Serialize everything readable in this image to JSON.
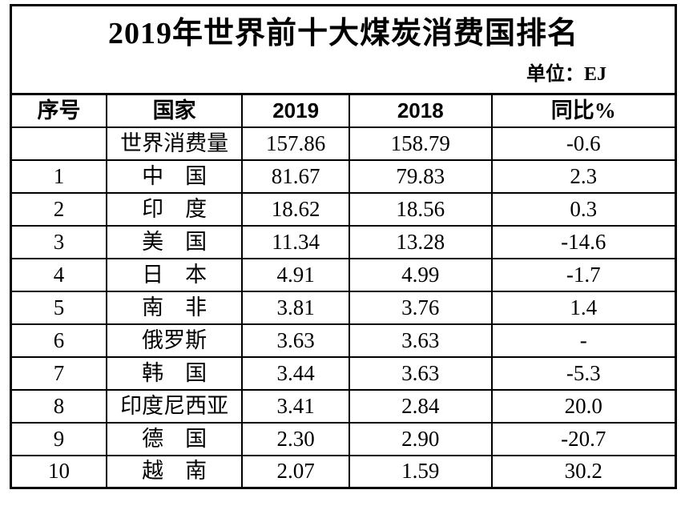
{
  "page": {
    "title": "2019年世界前十大煤炭消费国排名",
    "unit_label": "单位：EJ"
  },
  "table": {
    "columns": [
      "序号",
      "国家",
      "2019",
      "2018",
      "同比%"
    ],
    "rows": [
      {
        "rank": "",
        "country": "世界消费量",
        "v2019": "157.86",
        "v2018": "158.79",
        "yoy": "-0.6"
      },
      {
        "rank": "1",
        "country": "中　国",
        "v2019": "81.67",
        "v2018": "79.83",
        "yoy": "2.3"
      },
      {
        "rank": "2",
        "country": "印　度",
        "v2019": "18.62",
        "v2018": "18.56",
        "yoy": "0.3"
      },
      {
        "rank": "3",
        "country": "美　国",
        "v2019": "11.34",
        "v2018": "13.28",
        "yoy": "-14.6"
      },
      {
        "rank": "4",
        "country": "日　本",
        "v2019": "4.91",
        "v2018": "4.99",
        "yoy": "-1.7"
      },
      {
        "rank": "5",
        "country": "南　非",
        "v2019": "3.81",
        "v2018": "3.76",
        "yoy": "1.4"
      },
      {
        "rank": "6",
        "country": "俄罗斯",
        "v2019": "3.63",
        "v2018": "3.63",
        "yoy": "-"
      },
      {
        "rank": "7",
        "country": "韩　国",
        "v2019": "3.44",
        "v2018": "3.63",
        "yoy": "-5.3"
      },
      {
        "rank": "8",
        "country": "印度尼西亚",
        "v2019": "3.41",
        "v2018": "2.84",
        "yoy": "20.0"
      },
      {
        "rank": "9",
        "country": "德　国",
        "v2019": "2.30",
        "v2018": "2.90",
        "yoy": "-20.7"
      },
      {
        "rank": "10",
        "country": "越　南",
        "v2019": "2.07",
        "v2018": "1.59",
        "yoy": "30.2"
      }
    ]
  },
  "chart_data": {
    "type": "table",
    "title": "2019年世界前十大煤炭消费国排名",
    "unit": "EJ",
    "categories": [
      "世界消费量",
      "中国",
      "印度",
      "美国",
      "日本",
      "南非",
      "俄罗斯",
      "韩国",
      "印度尼西亚",
      "德国",
      "越南"
    ],
    "series": [
      {
        "name": "2019",
        "values": [
          157.86,
          81.67,
          18.62,
          11.34,
          4.91,
          3.81,
          3.63,
          3.44,
          3.41,
          2.3,
          2.07
        ]
      },
      {
        "name": "2018",
        "values": [
          158.79,
          79.83,
          18.56,
          13.28,
          4.99,
          3.76,
          3.63,
          3.63,
          2.84,
          2.9,
          1.59
        ]
      },
      {
        "name": "同比%",
        "values": [
          -0.6,
          2.3,
          0.3,
          -14.6,
          -1.7,
          1.4,
          null,
          -5.3,
          20.0,
          -20.7,
          30.2
        ]
      }
    ]
  },
  "colors": {
    "text": "#000000",
    "border": "#000000",
    "background": "#ffffff"
  }
}
